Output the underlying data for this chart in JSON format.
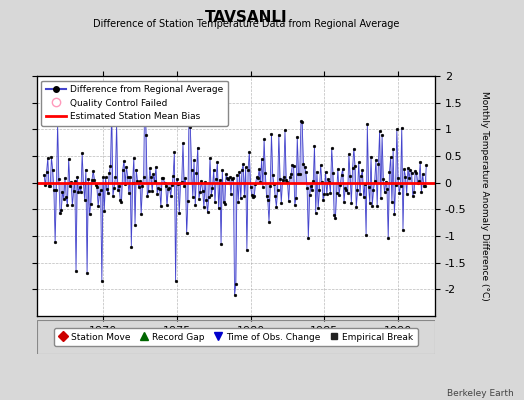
{
  "title": "TAVSANLI",
  "subtitle": "Difference of Station Temperature Data from Regional Average",
  "ylabel": "Monthly Temperature Anomaly Difference (°C)",
  "ylim": [
    -2.5,
    2.0
  ],
  "yticks": [
    -2.0,
    -1.5,
    -1.0,
    -0.5,
    0.0,
    0.5,
    1.0,
    1.5,
    2.0
  ],
  "xlim": [
    1965.5,
    1992.5
  ],
  "xticks": [
    1970,
    1975,
    1980,
    1985,
    1990
  ],
  "mean_bias": 0.0,
  "background_color": "#d8d8d8",
  "plot_bg_color": "#ffffff",
  "line_color": "#4444cc",
  "line_fill_color": "#aaaaee",
  "marker_color": "#000000",
  "bias_color": "#ff0000",
  "watermark": "Berkeley Earth",
  "seed": 42,
  "n_points": 312,
  "start_year": 1966.0
}
